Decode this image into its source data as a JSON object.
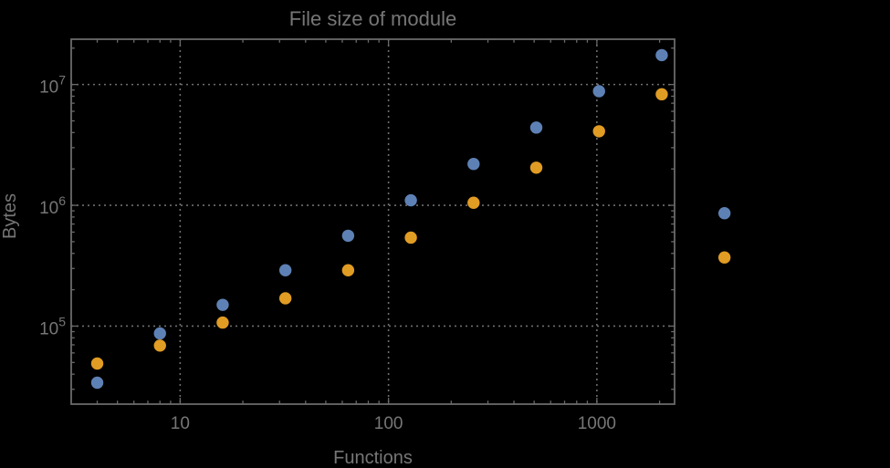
{
  "colors": {
    "background": "#000000",
    "frame": "#6a6a6a",
    "grid": "#6e6e6e",
    "text": "#767676",
    "series_blue": "#5e81b5",
    "series_orange": "#e19c24"
  },
  "chart_data": {
    "type": "scatter",
    "title": "File size of module",
    "xlabel": "Functions",
    "ylabel": "Bytes",
    "x_scale": "log",
    "y_scale": "log",
    "grid": true,
    "legend_position": "none",
    "plot_range_clipping": false,
    "x": [
      4,
      8,
      16,
      32,
      64,
      128,
      256,
      512,
      1024,
      2048,
      4096
    ],
    "series": [
      {
        "name": "series-blue",
        "color": "#5e81b5",
        "values": [
          34000,
          87000,
          150000,
          290000,
          560000,
          1100000,
          2200000,
          4400000,
          8800000,
          17500000,
          860000
        ]
      },
      {
        "name": "series-orange",
        "color": "#e19c24",
        "values": [
          49000,
          69000,
          107000,
          170000,
          290000,
          540000,
          1050000,
          2050000,
          4100000,
          8300000,
          370000
        ]
      }
    ],
    "xlim": [
      3,
      2360
    ],
    "ylim": [
      22600,
      23700000
    ],
    "x_major_ticks": [
      10,
      100,
      1000
    ],
    "x_major_labels": [
      "10",
      "100",
      "1000"
    ],
    "y_major_ticks": [
      100000,
      1000000,
      10000000
    ],
    "y_major_label_base": "10",
    "y_major_exponents": [
      "5",
      "6",
      "7"
    ]
  }
}
